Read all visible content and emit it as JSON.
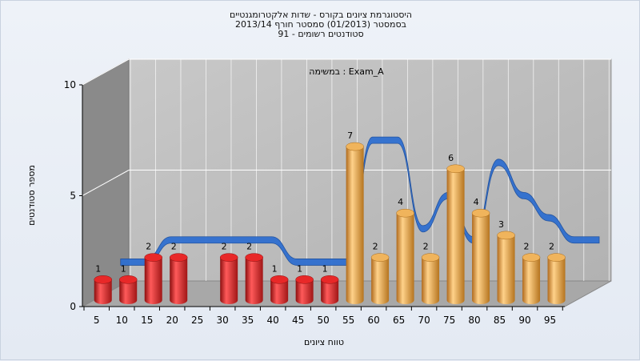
{
  "titles": {
    "line1": "היסטוגרמת ציונים בקורס - שדות אלקטרומגנטיים",
    "line2": "בסמסטר  (01/2013)  סמסטר חורף 2013/14",
    "line3": "סטודנטים רשומים - 91"
  },
  "chart_data": {
    "type": "bar",
    "title": "היסטוגרמת ציונים בקורס - שדות אלקטרומגנטיים",
    "subtitle": "במשימה : Exam_A",
    "xlabel": "טווח ציונים",
    "ylabel": "מספר סטודנטים",
    "categories": [
      "5",
      "10",
      "15",
      "20",
      "25",
      "30",
      "35",
      "40",
      "45",
      "50",
      "55",
      "60",
      "65",
      "70",
      "75",
      "80",
      "85",
      "90",
      "95"
    ],
    "values": [
      1,
      1,
      2,
      2,
      0,
      2,
      2,
      1,
      1,
      1,
      7,
      2,
      4,
      2,
      6,
      4,
      3,
      2,
      2
    ],
    "colors": {
      "fail": "#d42020",
      "pass": "#e8a040",
      "trend": "#2f6fd0",
      "wall_back": "#bdbdbd",
      "wall_left": "#8a8a8a"
    },
    "pass_threshold_label": "55",
    "trend_line": [
      1.5,
      1.5,
      2.5,
      2.5,
      2.5,
      2.5,
      2.5,
      1.5,
      1.5,
      1.5,
      7.0,
      7.0,
      3.0,
      4.5,
      2.5,
      6.0,
      4.5,
      3.5,
      2.5,
      2.5
    ],
    "y_ticks": [
      "0",
      "5",
      "10"
    ],
    "ylim": [
      0,
      10
    ],
    "grid": true
  }
}
